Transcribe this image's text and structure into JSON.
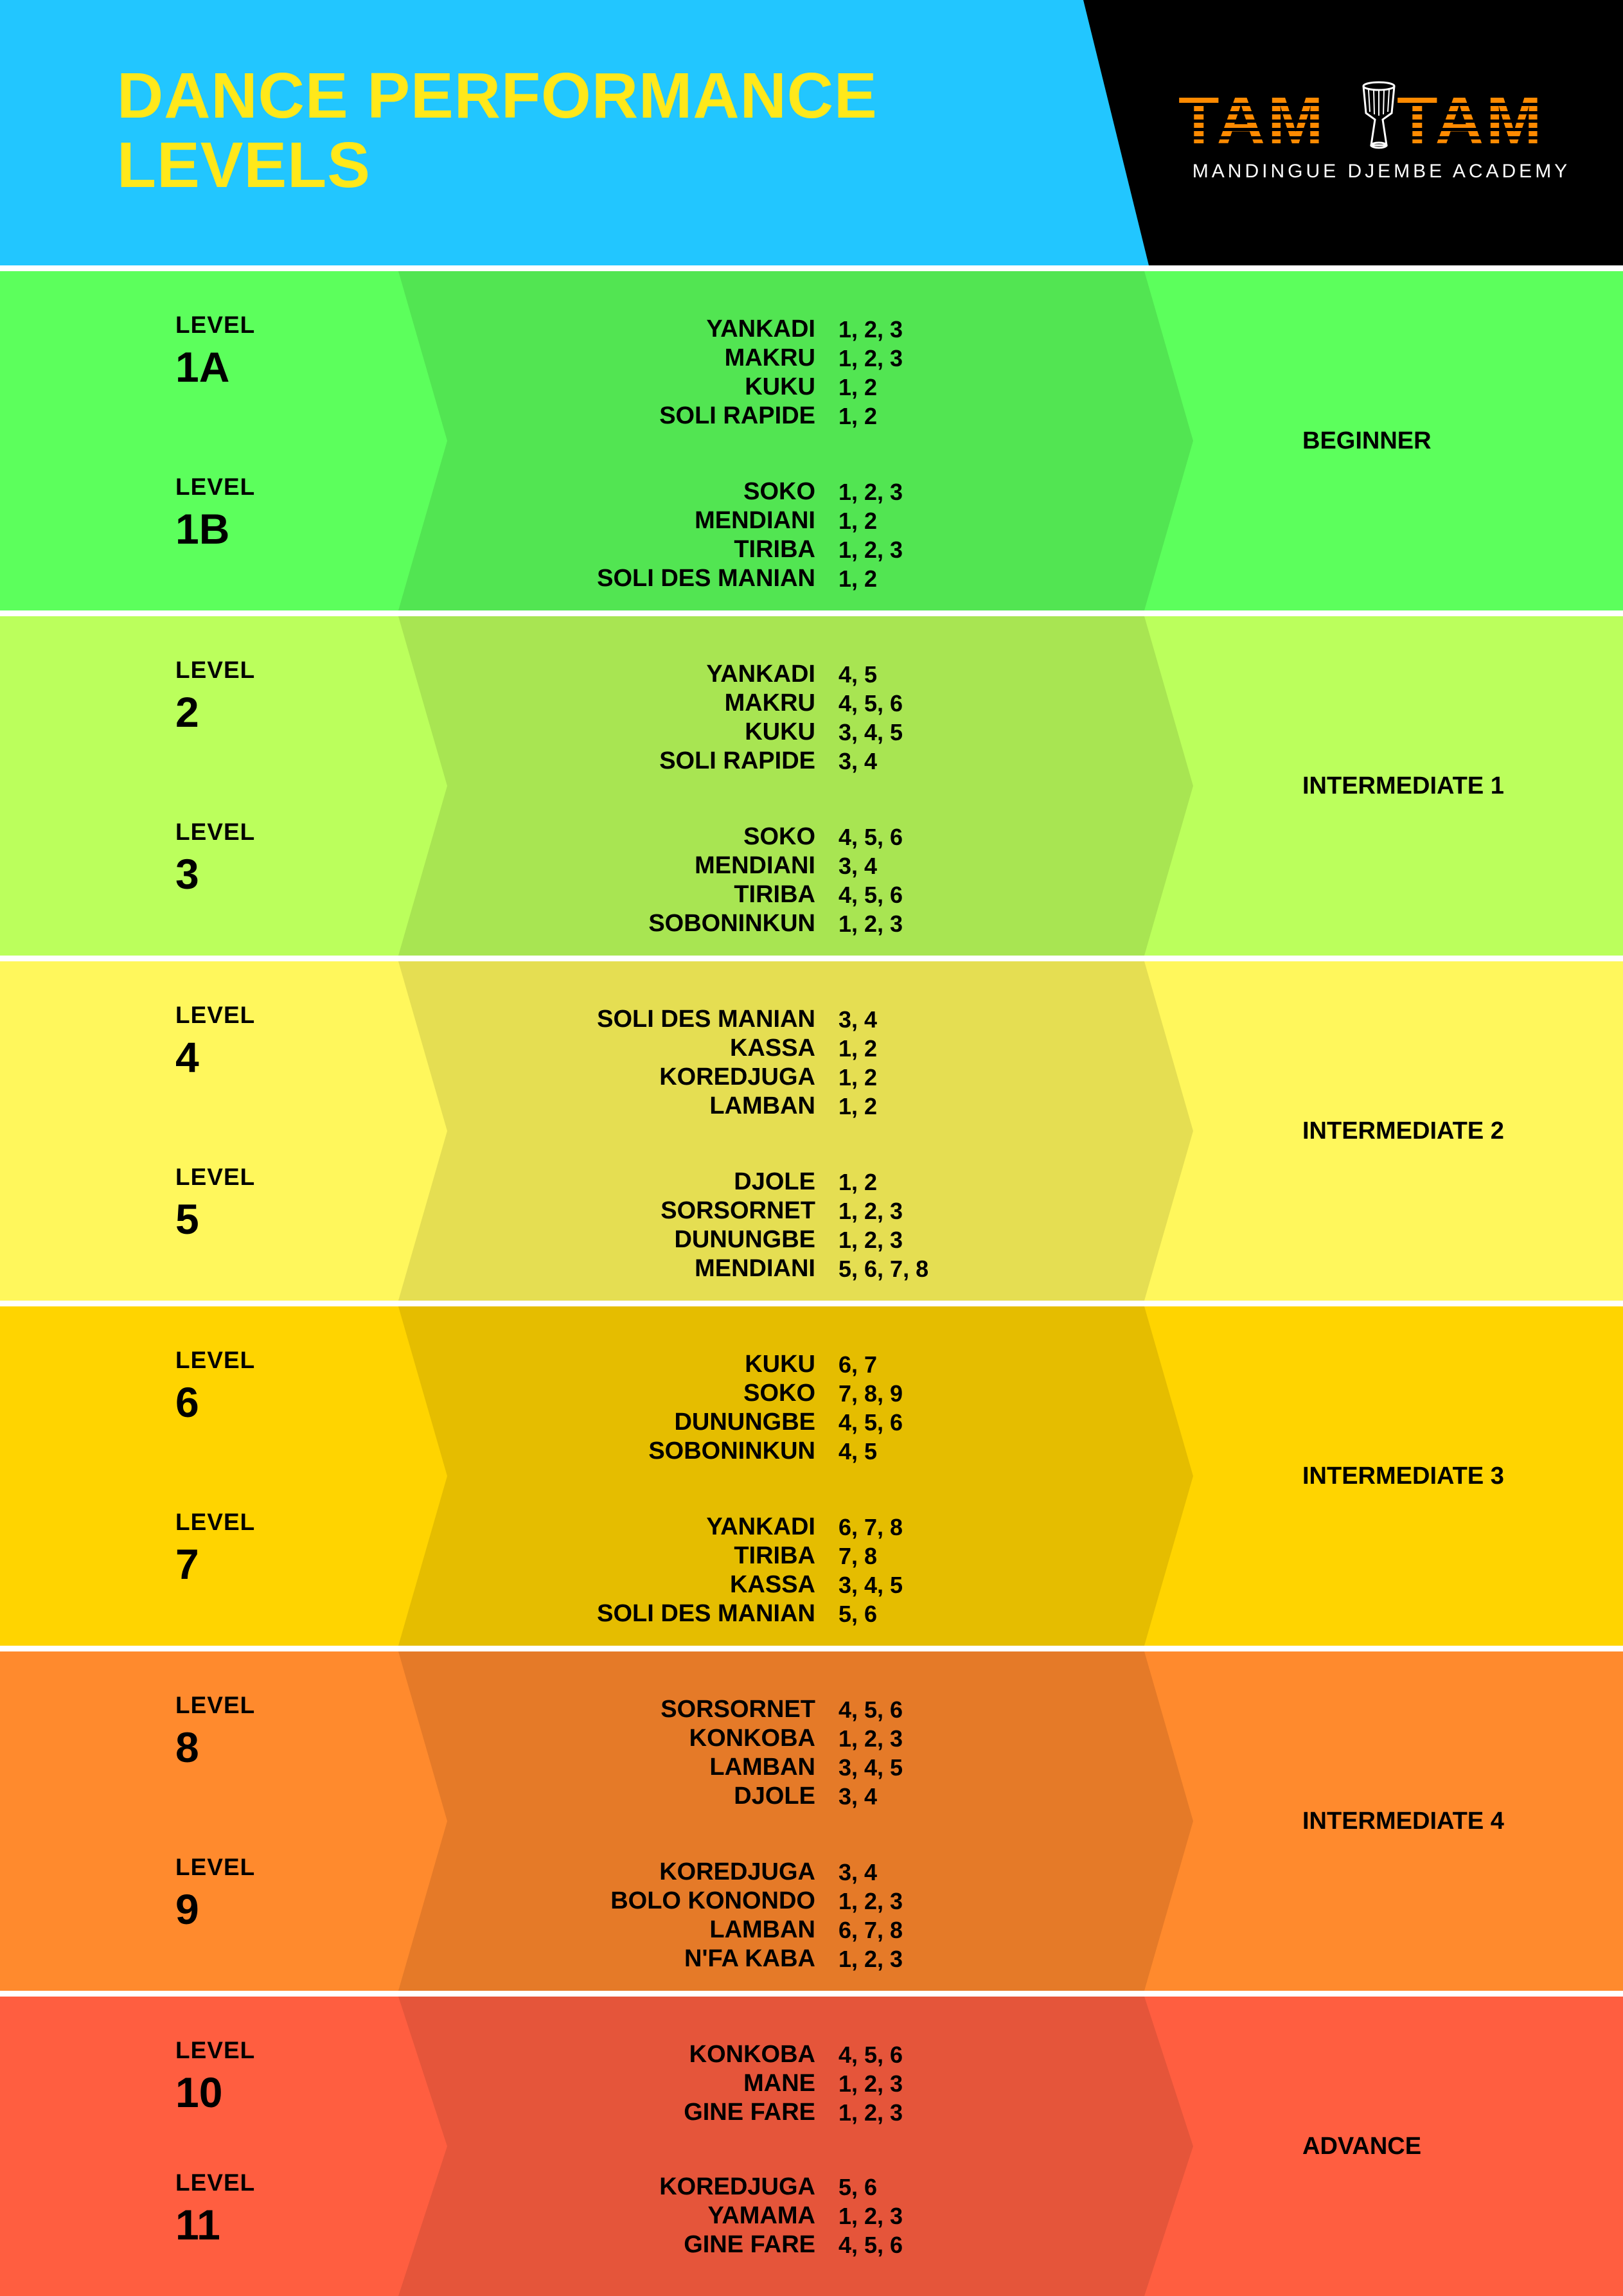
{
  "header": {
    "title_line1": "DANCE PERFORMANCE",
    "title_line2": "LEVELS",
    "logo_text": "TAM TAM",
    "logo_word1": "TAM",
    "logo_word2": "TAM",
    "logo_subtitle": "MANDINGUE DJEMBE ACADEMY",
    "colors": {
      "title": "#ffe81a",
      "blue": "#22c6ff",
      "logo_orange": "#ff8a00"
    }
  },
  "bands": [
    {
      "category": "BEGINNER",
      "bg": "#5cff5c",
      "mid": "#52e552",
      "levels": [
        {
          "label": "LEVEL",
          "number": "1A",
          "dances": [
            [
              "YANKADI",
              "1, 2, 3"
            ],
            [
              "MAKRU",
              "1, 2, 3"
            ],
            [
              "KUKU",
              "1, 2"
            ],
            [
              "SOLI RAPIDE",
              "1, 2"
            ]
          ]
        },
        {
          "label": "LEVEL",
          "number": "1B",
          "dances": [
            [
              "SOKO",
              "1, 2, 3"
            ],
            [
              "MENDIANI",
              "1, 2"
            ],
            [
              "TIRIBA",
              "1, 2, 3"
            ],
            [
              "SOLI DES MANIAN",
              "1, 2"
            ]
          ]
        }
      ]
    },
    {
      "category": "INTERMEDIATE 1",
      "bg": "#bbff5c",
      "mid": "#a8e552",
      "levels": [
        {
          "label": "LEVEL",
          "number": "2",
          "dances": [
            [
              "YANKADI",
              "4, 5"
            ],
            [
              "MAKRU",
              "4, 5, 6"
            ],
            [
              "KUKU",
              "3, 4, 5"
            ],
            [
              "SOLI RAPIDE",
              "3, 4"
            ]
          ]
        },
        {
          "label": "LEVEL",
          "number": "3",
          "dances": [
            [
              "SOKO",
              "4, 5, 6"
            ],
            [
              "MENDIANI",
              "3, 4"
            ],
            [
              "TIRIBA",
              "4, 5, 6"
            ],
            [
              "SOBONINKUN",
              "1, 2, 3"
            ]
          ]
        }
      ]
    },
    {
      "category": "INTERMEDIATE 2",
      "bg": "#fff75c",
      "mid": "#e5de52",
      "levels": [
        {
          "label": "LEVEL",
          "number": "4",
          "dances": [
            [
              "SOLI DES MANIAN",
              "3, 4"
            ],
            [
              "KASSA",
              "1, 2"
            ],
            [
              "KOREDJUGA",
              "1, 2"
            ],
            [
              "LAMBAN",
              "1, 2"
            ]
          ]
        },
        {
          "label": "LEVEL",
          "number": "5",
          "dances": [
            [
              "DJOLE",
              "1, 2"
            ],
            [
              "SORSORNET",
              "1, 2, 3"
            ],
            [
              "DUNUNGBE",
              "1, 2, 3"
            ],
            [
              "MENDIANI",
              "5, 6, 7, 8"
            ]
          ]
        }
      ]
    },
    {
      "category": "INTERMEDIATE 3",
      "bg": "#ffd400",
      "mid": "#e5bd00",
      "levels": [
        {
          "label": "LEVEL",
          "number": "6",
          "dances": [
            [
              "KUKU",
              "6, 7"
            ],
            [
              "SOKO",
              "7, 8, 9"
            ],
            [
              "DUNUNGBE",
              "4, 5, 6"
            ],
            [
              "SOBONINKUN",
              "4, 5"
            ]
          ]
        },
        {
          "label": "LEVEL",
          "number": "7",
          "dances": [
            [
              "YANKADI",
              "6, 7, 8"
            ],
            [
              "TIRIBA",
              "7, 8"
            ],
            [
              "KASSA",
              "3, 4, 5"
            ],
            [
              "SOLI DES MANIAN",
              "5, 6"
            ]
          ]
        }
      ]
    },
    {
      "category": "INTERMEDIATE 4",
      "bg": "#ff8a2d",
      "mid": "#e57a28",
      "levels": [
        {
          "label": "LEVEL",
          "number": "8",
          "dances": [
            [
              "SORSORNET",
              "4, 5, 6"
            ],
            [
              "KONKOBA",
              "1, 2, 3"
            ],
            [
              "LAMBAN",
              "3, 4, 5"
            ],
            [
              "DJOLE",
              "3, 4"
            ]
          ]
        },
        {
          "label": "LEVEL",
          "number": "9",
          "dances": [
            [
              "KOREDJUGA",
              "3, 4"
            ],
            [
              "BOLO KONONDO",
              "1, 2, 3"
            ],
            [
              "LAMBAN",
              "6, 7, 8"
            ],
            [
              "N'FA KABA",
              "1, 2, 3"
            ]
          ]
        }
      ]
    },
    {
      "category": "ADVANCE",
      "bg": "#ff5e40",
      "mid": "#e5553a",
      "levels": [
        {
          "label": "LEVEL",
          "number": "10",
          "dances": [
            [
              "KONKOBA",
              "4, 5, 6"
            ],
            [
              "MANE",
              "1, 2, 3"
            ],
            [
              "GINE FARE",
              "1, 2, 3"
            ]
          ]
        },
        {
          "label": "LEVEL",
          "number": "11",
          "dances": [
            [
              "KOREDJUGA",
              "5, 6"
            ],
            [
              "YAMAMA",
              "1, 2, 3"
            ],
            [
              "GINE FARE",
              "4, 5, 6"
            ]
          ]
        }
      ]
    }
  ]
}
